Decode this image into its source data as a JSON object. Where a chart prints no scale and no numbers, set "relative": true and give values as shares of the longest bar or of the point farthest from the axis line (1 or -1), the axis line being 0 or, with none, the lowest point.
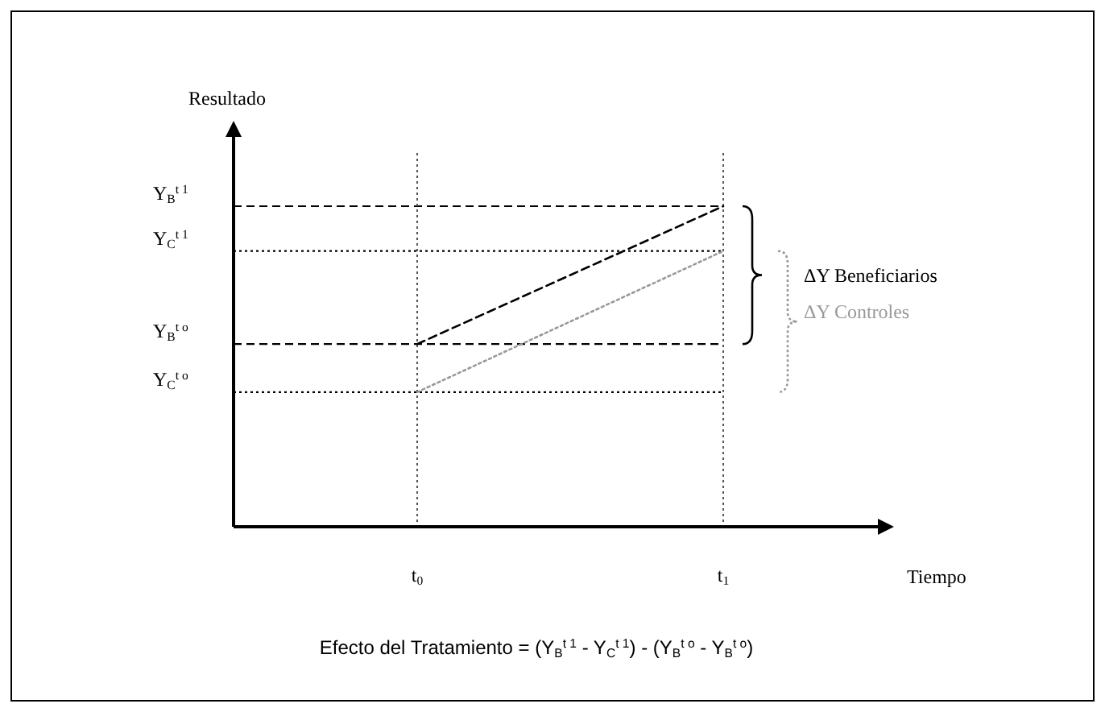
{
  "chart_data": {
    "type": "line",
    "relative": true,
    "ylabel": "Resultado",
    "xlabel": "Tiempo",
    "xlim": [
      0,
      1
    ],
    "xticks": [
      {
        "value": 0.285,
        "label": "t$_{0}$"
      },
      {
        "value": 0.76,
        "label": "t$_{1}$"
      }
    ],
    "x": [
      0.285,
      0.76
    ],
    "series": [
      {
        "color": "#000000",
        "line_style": "dashed",
        "values": [
          0.57,
          1
        ]
      },
      {
        "color": "#999999",
        "line_style": "dotted",
        "values": [
          0.42,
          0.86
        ]
      }
    ],
    "ref_lines": [
      {
        "axis": "y",
        "value": 1,
        "label": "Y$_{B}$$^{t 1}$",
        "color": "#000000",
        "line_style": "dashed"
      },
      {
        "axis": "y",
        "value": 0.86,
        "label": "Y$_{C}$$^{t 1}$",
        "color": "#000000",
        "line_style": "dotted"
      },
      {
        "axis": "y",
        "value": 0.57,
        "label": "Y$_{B}$$^{t o}$",
        "color": "#000000",
        "line_style": "dashed"
      },
      {
        "axis": "y",
        "value": 0.42,
        "label": "Y$_{C}$$^{t o}$",
        "color": "#000000",
        "line_style": "dotted"
      },
      {
        "axis": "x",
        "value": 0.285,
        "color": "#555555",
        "line_style": "dotted"
      },
      {
        "axis": "x",
        "value": 0.76,
        "color": "#555555",
        "line_style": "dotted"
      }
    ],
    "annotations": [
      "ΔY Beneficiarios",
      "ΔY Controles",
      "Efecto del Tratamiento = (Y$_{B}$$^{t 1}$ - Y$_{C}$$^{t 1}$) - (Y$_{B}$$^{t o}$ - Y$_{B}$$^{t o}$)"
    ],
    "marker": "none"
  }
}
